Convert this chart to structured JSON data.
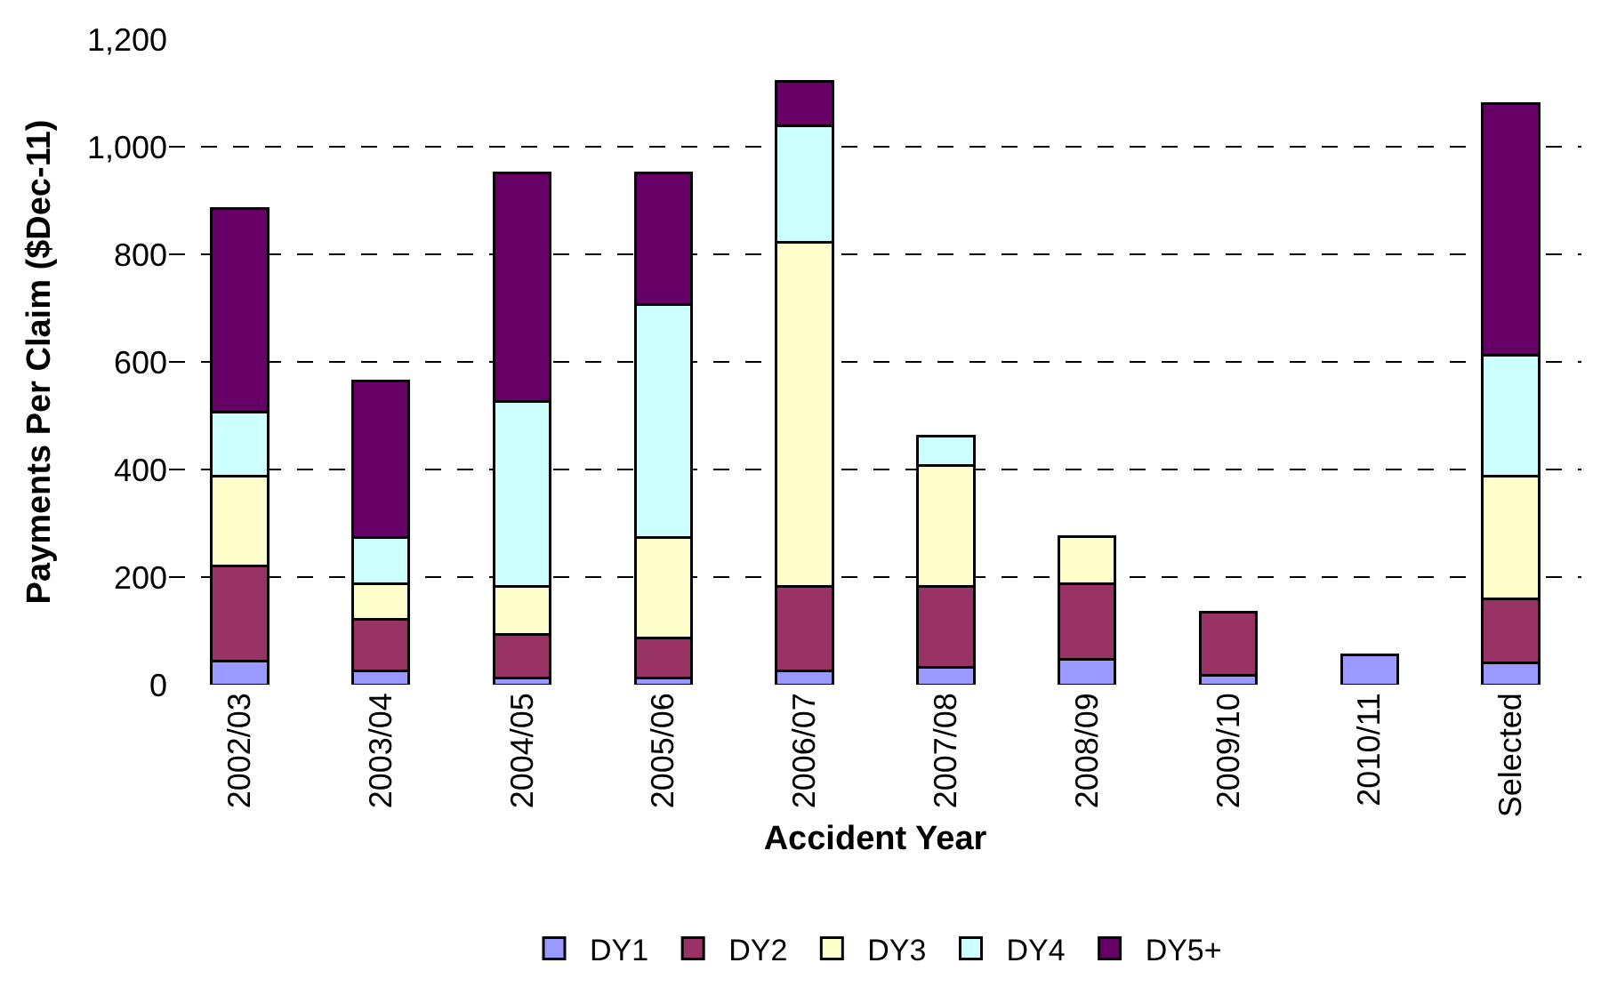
{
  "chart_data": {
    "type": "bar",
    "stacked": true,
    "xlabel": "Accident Year",
    "ylabel": "Payments Per Claim ($Dec-11)",
    "categories": [
      "2002/03",
      "2003/04",
      "2004/05",
      "2005/06",
      "2006/07",
      "2007/08",
      "2008/09",
      "2009/10",
      "2010/11",
      "Selected"
    ],
    "series": [
      {
        "name": "DY1",
        "color": "#9999ff",
        "values": [
          44,
          26,
          12,
          12,
          26,
          32,
          47,
          18,
          56,
          40
        ]
      },
      {
        "name": "DY2",
        "color": "#993366",
        "values": [
          176,
          95,
          81,
          75,
          156,
          150,
          141,
          116,
          null,
          119
        ]
      },
      {
        "name": "DY3",
        "color": "#ffffcc",
        "values": [
          167,
          66,
          89,
          187,
          641,
          225,
          87,
          null,
          null,
          228
        ]
      },
      {
        "name": "DY4",
        "color": "#ccffff",
        "values": [
          120,
          86,
          345,
          432,
          216,
          55,
          null,
          null,
          null,
          226
        ]
      },
      {
        "name": "DY5+",
        "color": "#660066",
        "values": [
          378,
          292,
          425,
          246,
          83,
          null,
          null,
          null,
          null,
          468
        ]
      }
    ],
    "ylim": [
      0,
      1200
    ],
    "yticks": [
      {
        "value": 0,
        "label": "0"
      },
      {
        "value": 200,
        "label": "200"
      },
      {
        "value": 400,
        "label": "400"
      },
      {
        "value": 600,
        "label": "600"
      },
      {
        "value": 800,
        "label": "800"
      },
      {
        "value": 1000,
        "label": "1,000"
      },
      {
        "value": 1200,
        "label": "1,200"
      }
    ],
    "grid": "y",
    "legend": "bottom"
  }
}
